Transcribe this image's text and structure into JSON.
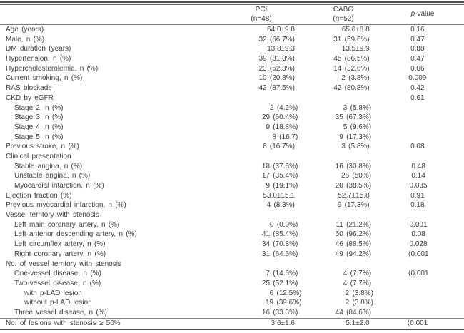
{
  "colors": {
    "background": "#ffffff",
    "text": "#3f3f3f",
    "rule_heavy": "#4f4f4f",
    "rule_light": "#8a8a8a"
  },
  "table": {
    "header": {
      "group1": "PCI",
      "group1_n": "(n=48)",
      "group2": "CABG",
      "group2_n": "(n=52)",
      "p_italic": "p",
      "p_suffix": "-value"
    },
    "rows": [
      {
        "label": "Age (years)",
        "indent": 0,
        "pci": "64.0±9.8",
        "cabg": "65.6±8.8",
        "p": "0.16"
      },
      {
        "label": "Male, n (%)",
        "indent": 0,
        "pci": "32 (66.7%)",
        "cabg": "31 (59.6%)",
        "p": "0.47"
      },
      {
        "label": "DM duration (years)",
        "indent": 0,
        "pci": "13.8±9.3",
        "cabg": "13.5±9.9",
        "p": "0.88"
      },
      {
        "label": "Hypertension, n (%)",
        "indent": 0,
        "pci": "39 (81.3%)",
        "cabg": "45 (86.5%)",
        "p": "0.47"
      },
      {
        "label": "Hypercholesterolemia, n (%)",
        "indent": 0,
        "pci": "23 (52.3%)",
        "cabg": "14 (32.6%)",
        "p": "0.06"
      },
      {
        "label": "Current smoking, n (%)",
        "indent": 0,
        "pci": "10 (20.8%)",
        "cabg": "2 (3.8%)",
        "p": "0.009"
      },
      {
        "label": "RAS blockade",
        "indent": 0,
        "pci": "42 (87.5%)",
        "cabg": "42 (80.8%)",
        "p": "0.42"
      },
      {
        "label": "CKD by eGFR",
        "indent": 0,
        "pci": "",
        "cabg": "",
        "p": "0.61"
      },
      {
        "label": "Stage 2, n (%)",
        "indent": 1,
        "pci": "2 (4.2%)",
        "cabg": "3 (5.8%)",
        "p": ""
      },
      {
        "label": "Stage 3, n (%)",
        "indent": 1,
        "pci": "29 (60.4%)",
        "cabg": "35 (67.3%)",
        "p": ""
      },
      {
        "label": "Stage 4, n (%)",
        "indent": 1,
        "pci": "9 (18.8%)",
        "cabg": "5 (9.6%)",
        "p": ""
      },
      {
        "label": "Stage 5, n (%)",
        "indent": 1,
        "pci": "8 (16.7)",
        "cabg": "9 (17.3%)",
        "p": ""
      },
      {
        "label": "Previous stroke, n (%)",
        "indent": 0,
        "pci": "8 (16.7%)",
        "cabg": "3 (5.8%)",
        "p": "0.08"
      },
      {
        "label": "Clinical presentation",
        "indent": 0,
        "pci": "",
        "cabg": "",
        "p": ""
      },
      {
        "label": "Stable angina, n (%)",
        "indent": 1,
        "pci": "18 (37.5%)",
        "cabg": "16 (30.8%)",
        "p": "0.48"
      },
      {
        "label": "Unstable angina, n (%)",
        "indent": 1,
        "pci": "17 (35.4%)",
        "cabg": "26 (50%)",
        "p": "0.14"
      },
      {
        "label": "Myocardial infarction, n (%)",
        "indent": 1,
        "pci": "9 (19.1%)",
        "cabg": "20 (38.5%)",
        "p": "0.035"
      },
      {
        "label": "Ejection fraction (%)",
        "indent": 0,
        "pci": "53.0±15.1",
        "cabg": "52.7±15.8",
        "p": "0.91"
      },
      {
        "label": "Previous myocardial infarction, n (%)",
        "indent": 0,
        "pci": "4 (8.3%)",
        "cabg": "9 (17.3%)",
        "p": "0.18"
      },
      {
        "label": "Vessel territory with stenosis",
        "indent": 0,
        "pci": "",
        "cabg": "",
        "p": ""
      },
      {
        "label": "Left main coronary artery, n (%)",
        "indent": 1,
        "pci": "0 (0.0%)",
        "cabg": "11 (21.2%)",
        "p": "0.001"
      },
      {
        "label": "Left anterior descending artery, n (%)",
        "indent": 1,
        "pci": "41 (85.4%)",
        "cabg": "50 (96.2%)",
        "p": "0.08"
      },
      {
        "label": "Left circumflex artery, n (%)",
        "indent": 1,
        "pci": "34 (70.8%)",
        "cabg": "46 (88.5%)",
        "p": "0.028"
      },
      {
        "label": "Right coronary artery, n (%)",
        "indent": 1,
        "pci": "31 (64.6%)",
        "cabg": "49 (94.2%)",
        "p": "⟨0.001"
      },
      {
        "label": "No. of vessel territory with stenosis",
        "indent": 0,
        "pci": "",
        "cabg": "",
        "p": ""
      },
      {
        "label": "One-vessel disease, n (%)",
        "indent": 1,
        "pci": "7 (14.6%)",
        "cabg": "4 (7.7%)",
        "p": "⟨0.001"
      },
      {
        "label": "Two-vessel disease, n (%)",
        "indent": 1,
        "pci": "25 (52.1%)",
        "cabg": "4 (7.7%)",
        "p": ""
      },
      {
        "label": "with p-LAD lesion",
        "indent": 2,
        "pci": "6 (12.5%)",
        "cabg": "2 (3.8%)",
        "p": ""
      },
      {
        "label": "without p-LAD lesion",
        "indent": 2,
        "pci": "19 (39.6%)",
        "cabg": "2 (3.8%)",
        "p": ""
      },
      {
        "label": "Three vessel disease, n (%)",
        "indent": 1,
        "pci": "16 (33.3%)",
        "cabg": "44 (84.6%)",
        "p": ""
      },
      {
        "label": "No. of lesions with stenosis ≥ 50%",
        "indent": 0,
        "pci": "3.6±1.6",
        "cabg": "5.1±2.0",
        "p": "⟨0.001",
        "rule_above": true
      }
    ]
  }
}
